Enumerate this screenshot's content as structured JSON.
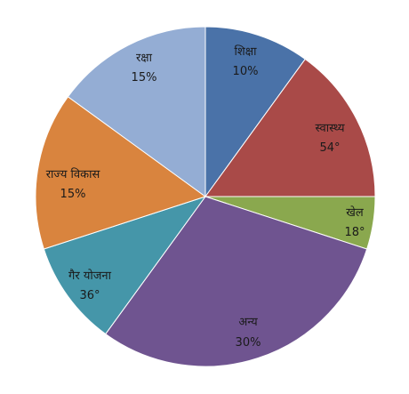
{
  "chart_data": {
    "type": "pie",
    "title": "",
    "start": "top-clockwise",
    "slices": [
      {
        "name": "शिक्षा",
        "value_label": "10%",
        "degrees": 36,
        "color": "#4a72a8"
      },
      {
        "name": "स्वास्थ्य",
        "value_label": "54°",
        "degrees": 54,
        "color": "#a94a48"
      },
      {
        "name": "खेल",
        "value_label": "18°",
        "degrees": 18,
        "color": "#8aa84e"
      },
      {
        "name": "अन्य",
        "value_label": "30%",
        "degrees": 108,
        "color": "#6f5490"
      },
      {
        "name": "गैर योजना",
        "value_label": "36°",
        "degrees": 36,
        "color": "#4596a9"
      },
      {
        "name": "राज्य विकास",
        "value_label": "15%",
        "degrees": 54,
        "color": "#d9843e"
      },
      {
        "name": "रक्षा",
        "value_label": "15%",
        "degrees": 54,
        "color": "#94add4"
      }
    ]
  }
}
